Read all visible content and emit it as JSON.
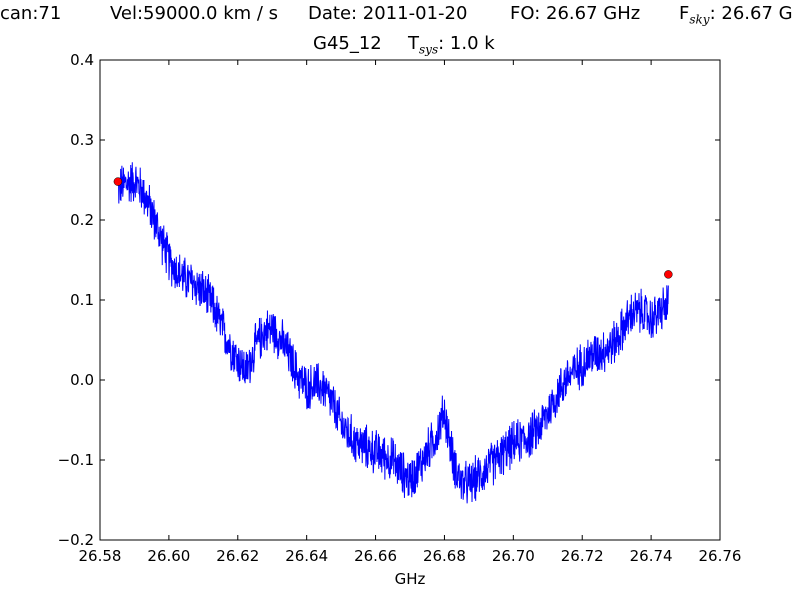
{
  "header": {
    "scan": "can:71",
    "velocity": "Vel:59000.0 km / s",
    "date": "Date: 2011-01-20",
    "fo": "FO: 26.67 GHz",
    "fsky_prefix": "F",
    "fsky_sub": "sky",
    "fsky_value": ": 26.67 G"
  },
  "subtitle": {
    "source": "G45_12",
    "tsys_prefix": "T",
    "tsys_sub": "sys",
    "tsys_value": ": 1.0 k"
  },
  "chart_data": {
    "type": "line",
    "xlabel": "GHz",
    "ylabel": "",
    "xlim": [
      26.58,
      26.76
    ],
    "ylim": [
      -0.2,
      0.4
    ],
    "x_ticks": [
      26.58,
      26.6,
      26.62,
      26.64,
      26.66,
      26.68,
      26.7,
      26.72,
      26.74,
      26.76
    ],
    "x_tick_labels": [
      "26.58",
      "26.60",
      "26.62",
      "26.64",
      "26.66",
      "26.68",
      "26.70",
      "26.72",
      "26.74",
      "26.76"
    ],
    "y_ticks": [
      -0.2,
      -0.1,
      0.0,
      0.1,
      0.2,
      0.3,
      0.4
    ],
    "y_tick_labels": [
      "−0.2",
      "−0.1",
      "0.0",
      "0.1",
      "0.2",
      "0.3",
      "0.4"
    ],
    "grid": false,
    "series": [
      {
        "color": "#0000ff",
        "x": [
          26.5852,
          26.5875,
          26.59,
          26.5925,
          26.595,
          26.5975,
          26.6,
          26.6025,
          26.605,
          26.6075,
          26.61,
          26.6125,
          26.615,
          26.6175,
          26.62,
          26.6225,
          26.625,
          26.6275,
          26.63,
          26.6325,
          26.635,
          26.6375,
          26.64,
          26.6425,
          26.645,
          26.6475,
          26.65,
          26.6525,
          26.655,
          26.6575,
          26.66,
          26.6625,
          26.665,
          26.6675,
          26.67,
          26.6725,
          26.675,
          26.6775,
          26.68,
          26.6825,
          26.685,
          26.6875,
          26.69,
          26.6925,
          26.695,
          26.6975,
          26.7,
          26.7025,
          26.705,
          26.7075,
          26.71,
          26.7125,
          26.715,
          26.7175,
          26.72,
          26.7225,
          26.725,
          26.7275,
          26.73,
          26.7325,
          26.735,
          26.7375,
          26.74,
          26.7425,
          26.745
        ],
        "y": [
          0.24,
          0.245,
          0.25,
          0.235,
          0.21,
          0.18,
          0.15,
          0.135,
          0.125,
          0.12,
          0.11,
          0.095,
          0.07,
          0.045,
          0.025,
          0.01,
          0.04,
          0.06,
          0.065,
          0.05,
          0.03,
          0.005,
          -0.01,
          -0.005,
          -0.01,
          -0.03,
          -0.055,
          -0.07,
          -0.08,
          -0.085,
          -0.09,
          -0.095,
          -0.1,
          -0.115,
          -0.125,
          -0.11,
          -0.09,
          -0.07,
          -0.04,
          -0.1,
          -0.13,
          -0.13,
          -0.12,
          -0.11,
          -0.1,
          -0.09,
          -0.08,
          -0.075,
          -0.07,
          -0.06,
          -0.04,
          -0.02,
          0.0,
          0.01,
          0.02,
          0.03,
          0.035,
          0.04,
          0.05,
          0.07,
          0.085,
          0.085,
          0.075,
          0.085,
          0.095
        ],
        "noise_amplitude": 0.025
      }
    ],
    "markers": [
      {
        "x": 26.5852,
        "y": 0.248,
        "color": "#ff0000"
      },
      {
        "x": 26.745,
        "y": 0.132,
        "color": "#ff0000"
      }
    ]
  }
}
